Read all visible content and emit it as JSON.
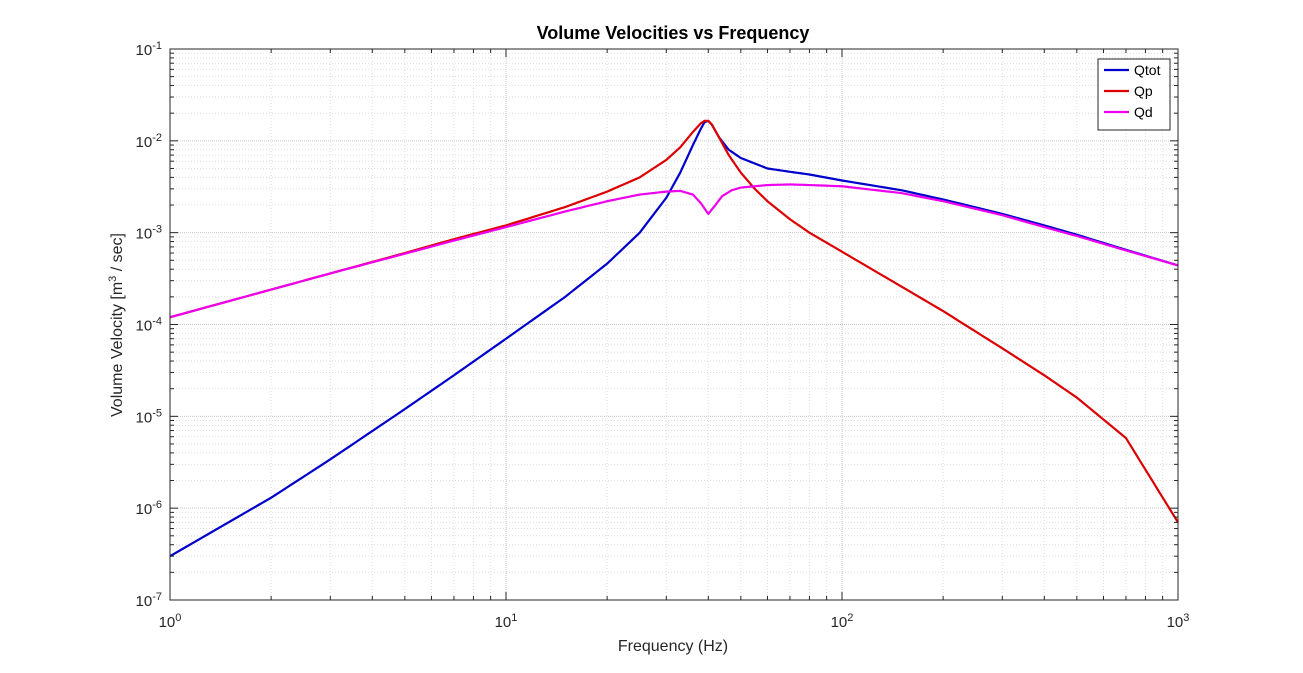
{
  "chart_data": {
    "type": "line",
    "title": "Volume Velocities vs Frequency",
    "xlabel": "Frequency (Hz)",
    "ylabel": {
      "prefix": "Volume Velocity [m",
      "superscript": "3",
      "suffix": " / sec]"
    },
    "xscale": "log",
    "yscale": "log",
    "xlim": [
      1,
      1000
    ],
    "ylim": [
      1e-07,
      0.1
    ],
    "grid": true,
    "minor_grid": true,
    "legend_position": "top-right",
    "x_ticks": [
      {
        "value": 1,
        "base": "10",
        "exp": "0"
      },
      {
        "value": 10,
        "base": "10",
        "exp": "1"
      },
      {
        "value": 100,
        "base": "10",
        "exp": "2"
      },
      {
        "value": 1000,
        "base": "10",
        "exp": "3"
      }
    ],
    "y_ticks": [
      {
        "value": 1e-07,
        "base": "10",
        "exp": "-7"
      },
      {
        "value": 1e-06,
        "base": "10",
        "exp": "-6"
      },
      {
        "value": 1e-05,
        "base": "10",
        "exp": "-5"
      },
      {
        "value": 0.0001,
        "base": "10",
        "exp": "-4"
      },
      {
        "value": 0.001,
        "base": "10",
        "exp": "-3"
      },
      {
        "value": 0.01,
        "base": "10",
        "exp": "-2"
      },
      {
        "value": 0.1,
        "base": "10",
        "exp": "-1"
      }
    ],
    "series": [
      {
        "name": "Qtot",
        "color": "#0000cc",
        "points": [
          [
            1,
            3e-07
          ],
          [
            2,
            1.3e-06
          ],
          [
            3,
            3.4e-06
          ],
          [
            5,
            1.2e-05
          ],
          [
            7,
            2.8e-05
          ],
          [
            10,
            7e-05
          ],
          [
            15,
            0.0002
          ],
          [
            20,
            0.00046
          ],
          [
            25,
            0.001
          ],
          [
            30,
            0.0024
          ],
          [
            33,
            0.0045
          ],
          [
            36,
            0.009
          ],
          [
            38,
            0.0135
          ],
          [
            39,
            0.016
          ],
          [
            40,
            0.0165
          ],
          [
            41,
            0.015
          ],
          [
            43,
            0.011
          ],
          [
            46,
            0.008
          ],
          [
            50,
            0.0065
          ],
          [
            60,
            0.005
          ],
          [
            70,
            0.0046
          ],
          [
            80,
            0.0043
          ],
          [
            100,
            0.0037
          ],
          [
            150,
            0.0029
          ],
          [
            200,
            0.0023
          ],
          [
            300,
            0.0016
          ],
          [
            400,
            0.0012
          ],
          [
            500,
            0.00095
          ],
          [
            700,
            0.00065
          ],
          [
            1000,
            0.00044
          ]
        ]
      },
      {
        "name": "Qp",
        "color": "#dd0000",
        "points": [
          [
            1,
            0.00012
          ],
          [
            2,
            0.00024
          ],
          [
            3,
            0.00036
          ],
          [
            5,
            0.0006
          ],
          [
            7,
            0.00085
          ],
          [
            10,
            0.0012
          ],
          [
            15,
            0.0019
          ],
          [
            20,
            0.0028
          ],
          [
            25,
            0.004
          ],
          [
            30,
            0.0062
          ],
          [
            33,
            0.0085
          ],
          [
            36,
            0.0125
          ],
          [
            38,
            0.0155
          ],
          [
            39,
            0.0165
          ],
          [
            40,
            0.0165
          ],
          [
            41,
            0.015
          ],
          [
            43,
            0.011
          ],
          [
            46,
            0.007
          ],
          [
            50,
            0.0045
          ],
          [
            55,
            0.003
          ],
          [
            60,
            0.0022
          ],
          [
            70,
            0.0014
          ],
          [
            80,
            0.001
          ],
          [
            100,
            0.00062
          ],
          [
            150,
            0.00026
          ],
          [
            200,
            0.00014
          ],
          [
            300,
            5.5e-05
          ],
          [
            400,
            2.8e-05
          ],
          [
            500,
            1.6e-05
          ],
          [
            700,
            5.8e-06
          ],
          [
            1000,
            7e-07
          ]
        ]
      },
      {
        "name": "Qd",
        "color": "#ee00ee",
        "points": [
          [
            1,
            0.00012
          ],
          [
            2,
            0.00024
          ],
          [
            3,
            0.00036
          ],
          [
            5,
            0.00059
          ],
          [
            7,
            0.00082
          ],
          [
            10,
            0.00115
          ],
          [
            15,
            0.0017
          ],
          [
            20,
            0.0022
          ],
          [
            25,
            0.0026
          ],
          [
            30,
            0.0028
          ],
          [
            33,
            0.00285
          ],
          [
            36,
            0.0026
          ],
          [
            38,
            0.0021
          ],
          [
            40,
            0.0016
          ],
          [
            42,
            0.002
          ],
          [
            44,
            0.0025
          ],
          [
            47,
            0.0029
          ],
          [
            50,
            0.0031
          ],
          [
            60,
            0.0033
          ],
          [
            70,
            0.00335
          ],
          [
            80,
            0.0033
          ],
          [
            100,
            0.0032
          ],
          [
            150,
            0.0027
          ],
          [
            200,
            0.0022
          ],
          [
            300,
            0.00155
          ],
          [
            400,
            0.00115
          ],
          [
            500,
            0.00092
          ],
          [
            700,
            0.00064
          ],
          [
            1000,
            0.00044
          ]
        ]
      }
    ]
  }
}
